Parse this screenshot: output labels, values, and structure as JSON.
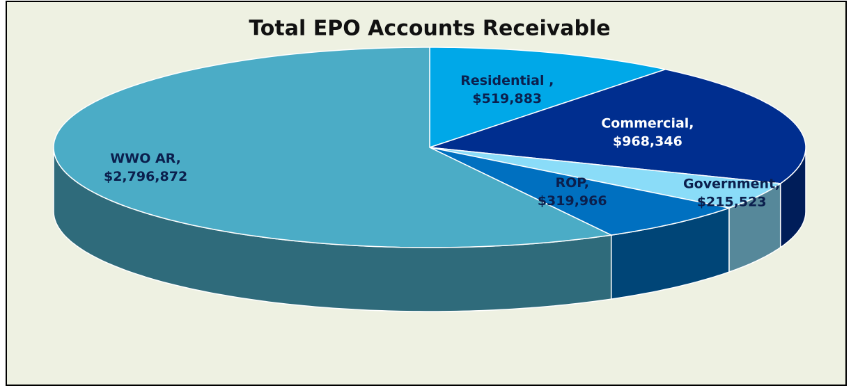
{
  "chart_data": {
    "type": "pie",
    "title": "Total EPO Accounts Receivable",
    "categories": [
      "Residential ,",
      "Commercial,",
      "Government,",
      "ROP,",
      "WWO AR,"
    ],
    "values": [
      519883,
      968346,
      215523,
      319966,
      2796872
    ],
    "value_labels": [
      "$519,883",
      "$968,346",
      "$215,523",
      "$319,966",
      "$2,796,872"
    ],
    "colors": [
      "#00a8e8",
      "#002e8f",
      "#8adcf8",
      "#0070c0",
      "#4bacc6"
    ]
  }
}
